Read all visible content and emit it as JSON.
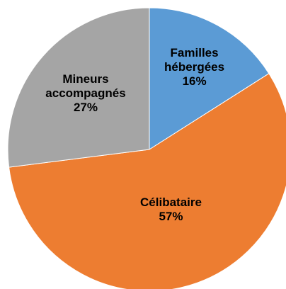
{
  "chart_data": {
    "type": "pie",
    "categories": [
      "Familles hébergées",
      "Célibataire",
      "Mineurs accompagnés"
    ],
    "values": [
      16,
      57,
      27
    ],
    "value_labels": [
      "16%",
      "57%",
      "27%"
    ],
    "colors": [
      "#5b9bd5",
      "#ed7d31",
      "#a5a5a5"
    ]
  }
}
